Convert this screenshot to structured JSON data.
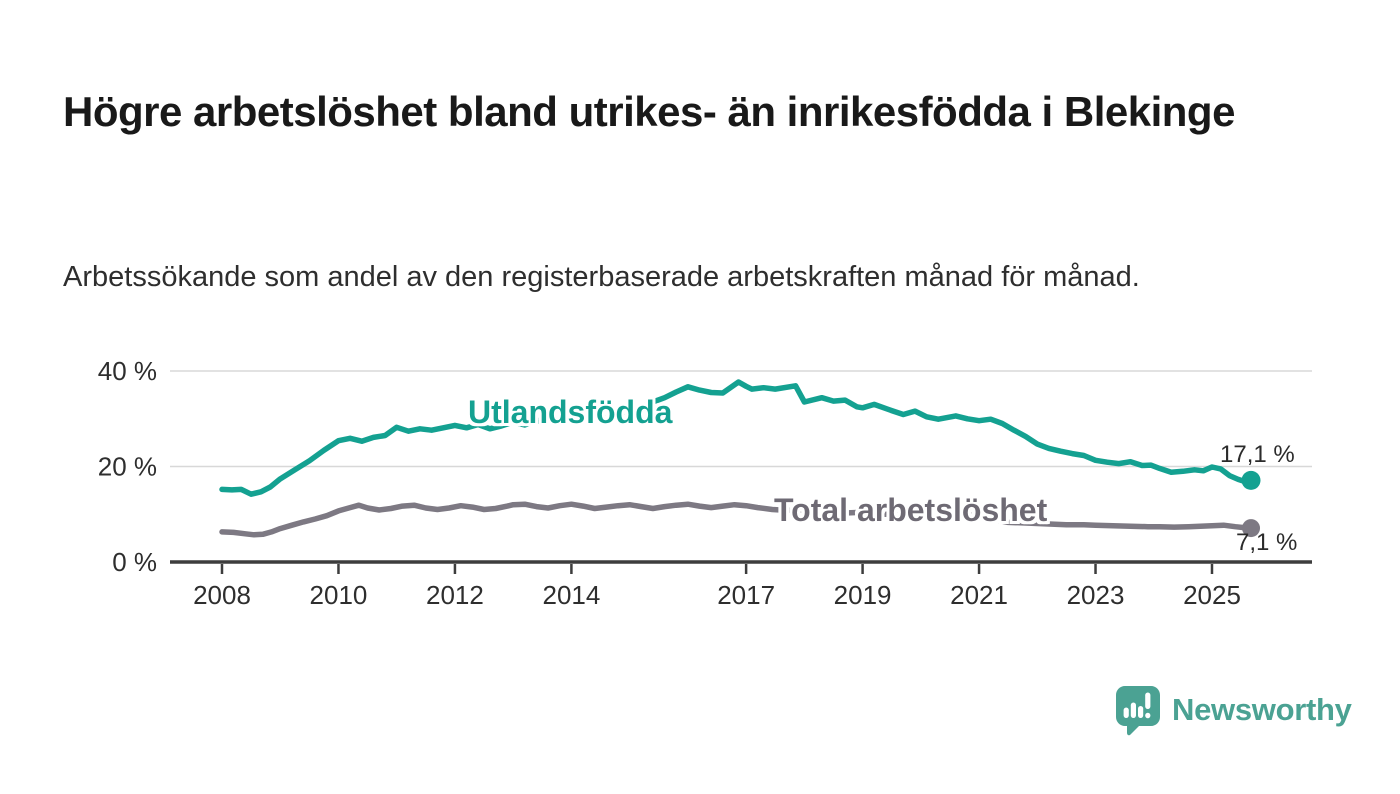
{
  "header": {
    "title": "Högre arbetslöshet bland utrikes- än inrikesfödda i Blekinge",
    "subtitle": "Arbetssökande som andel av den registerbaserade arbetskraften månad för månad."
  },
  "chart_data": {
    "type": "line",
    "title": "Högre arbetslöshet bland utrikes- än inrikesfödda i Blekinge",
    "subtitle": "Arbetssökande som andel av den registerbaserade arbetskraften månad för månad.",
    "unit": "%",
    "grid": "horizontal",
    "legend_position": "inline-labels",
    "ylim": [
      0,
      44
    ],
    "xlim": [
      2007.1,
      2026.7
    ],
    "y_ticks": [
      {
        "label": "0 %",
        "value": 0
      },
      {
        "label": "20 %",
        "value": 20
      },
      {
        "label": "40 %",
        "value": 40
      }
    ],
    "x_ticks": [
      {
        "label": "2008",
        "value": 2008
      },
      {
        "label": "2010",
        "value": 2010
      },
      {
        "label": "2012",
        "value": 2012
      },
      {
        "label": "2014",
        "value": 2014
      },
      {
        "label": "2017",
        "value": 2017
      },
      {
        "label": "2019",
        "value": 2019
      },
      {
        "label": "2021",
        "value": 2021
      },
      {
        "label": "2023",
        "value": 2023
      },
      {
        "label": "2025",
        "value": 2025
      }
    ],
    "series": [
      {
        "name": "Utlandsfödda",
        "color": "#14a191",
        "end_value": 17.1,
        "end_label": "17,1 %",
        "points": [
          [
            2008.0,
            15.2
          ],
          [
            2008.17,
            15.1
          ],
          [
            2008.33,
            15.2
          ],
          [
            2008.5,
            14.2
          ],
          [
            2008.67,
            14.7
          ],
          [
            2008.83,
            15.7
          ],
          [
            2009.0,
            17.4
          ],
          [
            2009.25,
            19.3
          ],
          [
            2009.5,
            21.2
          ],
          [
            2009.75,
            23.4
          ],
          [
            2010.0,
            25.4
          ],
          [
            2010.2,
            25.9
          ],
          [
            2010.4,
            25.3
          ],
          [
            2010.6,
            26.1
          ],
          [
            2010.8,
            26.5
          ],
          [
            2011.0,
            28.2
          ],
          [
            2011.2,
            27.4
          ],
          [
            2011.4,
            27.9
          ],
          [
            2011.6,
            27.6
          ],
          [
            2011.8,
            28.1
          ],
          [
            2012.0,
            28.6
          ],
          [
            2012.2,
            28.1
          ],
          [
            2012.4,
            28.8
          ],
          [
            2012.6,
            27.9
          ],
          [
            2012.8,
            28.5
          ],
          [
            2013.0,
            29.3
          ],
          [
            2013.2,
            28.7
          ],
          [
            2013.4,
            29.7
          ],
          [
            2013.6,
            29.3
          ],
          [
            2013.8,
            29.7
          ],
          [
            2014.0,
            30.2
          ],
          [
            2014.2,
            29.5
          ],
          [
            2014.4,
            30.5
          ],
          [
            2014.6,
            30.1
          ],
          [
            2014.8,
            31.1
          ],
          [
            2015.0,
            31.5
          ],
          [
            2015.2,
            32.3
          ],
          [
            2015.4,
            33.5
          ],
          [
            2015.6,
            34.4
          ],
          [
            2015.8,
            35.6
          ],
          [
            2016.0,
            36.7
          ],
          [
            2016.2,
            36.0
          ],
          [
            2016.4,
            35.5
          ],
          [
            2016.6,
            35.4
          ],
          [
            2016.87,
            37.7
          ],
          [
            2017.0,
            36.8
          ],
          [
            2017.1,
            36.2
          ],
          [
            2017.3,
            36.5
          ],
          [
            2017.5,
            36.2
          ],
          [
            2017.85,
            36.9
          ],
          [
            2018.0,
            33.5
          ],
          [
            2018.3,
            34.4
          ],
          [
            2018.5,
            33.7
          ],
          [
            2018.7,
            33.9
          ],
          [
            2018.9,
            32.5
          ],
          [
            2019.0,
            32.3
          ],
          [
            2019.2,
            33.0
          ],
          [
            2019.5,
            31.7
          ],
          [
            2019.7,
            30.9
          ],
          [
            2019.9,
            31.6
          ],
          [
            2020.1,
            30.4
          ],
          [
            2020.3,
            29.9
          ],
          [
            2020.6,
            30.6
          ],
          [
            2020.8,
            30.0
          ],
          [
            2021.0,
            29.6
          ],
          [
            2021.2,
            29.9
          ],
          [
            2021.4,
            29.0
          ],
          [
            2021.6,
            27.6
          ],
          [
            2021.8,
            26.3
          ],
          [
            2022.0,
            24.7
          ],
          [
            2022.2,
            23.8
          ],
          [
            2022.4,
            23.2
          ],
          [
            2022.6,
            22.7
          ],
          [
            2022.8,
            22.3
          ],
          [
            2023.0,
            21.3
          ],
          [
            2023.2,
            20.9
          ],
          [
            2023.4,
            20.6
          ],
          [
            2023.6,
            21.0
          ],
          [
            2023.8,
            20.2
          ],
          [
            2023.95,
            20.3
          ],
          [
            2024.1,
            19.6
          ],
          [
            2024.3,
            18.8
          ],
          [
            2024.5,
            19.0
          ],
          [
            2024.7,
            19.3
          ],
          [
            2024.85,
            19.1
          ],
          [
            2025.0,
            19.9
          ],
          [
            2025.15,
            19.5
          ],
          [
            2025.3,
            18.1
          ],
          [
            2025.45,
            17.3
          ],
          [
            2025.55,
            16.9
          ],
          [
            2025.67,
            17.1
          ]
        ]
      },
      {
        "name": "Total arbetslöshet",
        "color": "#7d7983",
        "end_value": 7.1,
        "end_label": "7,1 %",
        "points": [
          [
            2008.0,
            6.3
          ],
          [
            2008.2,
            6.2
          ],
          [
            2008.4,
            5.9
          ],
          [
            2008.55,
            5.7
          ],
          [
            2008.7,
            5.8
          ],
          [
            2008.85,
            6.3
          ],
          [
            2009.0,
            7.0
          ],
          [
            2009.2,
            7.7
          ],
          [
            2009.4,
            8.4
          ],
          [
            2009.6,
            9.0
          ],
          [
            2009.8,
            9.7
          ],
          [
            2010.0,
            10.7
          ],
          [
            2010.2,
            11.4
          ],
          [
            2010.35,
            11.9
          ],
          [
            2010.5,
            11.3
          ],
          [
            2010.7,
            10.9
          ],
          [
            2010.9,
            11.2
          ],
          [
            2011.1,
            11.7
          ],
          [
            2011.3,
            11.9
          ],
          [
            2011.5,
            11.3
          ],
          [
            2011.7,
            11.0
          ],
          [
            2011.9,
            11.3
          ],
          [
            2012.1,
            11.8
          ],
          [
            2012.3,
            11.5
          ],
          [
            2012.5,
            11.0
          ],
          [
            2012.7,
            11.2
          ],
          [
            2012.9,
            11.7
          ],
          [
            2013.0,
            12.0
          ],
          [
            2013.2,
            12.1
          ],
          [
            2013.4,
            11.6
          ],
          [
            2013.6,
            11.3
          ],
          [
            2013.8,
            11.8
          ],
          [
            2014.0,
            12.1
          ],
          [
            2014.2,
            11.7
          ],
          [
            2014.4,
            11.2
          ],
          [
            2014.6,
            11.5
          ],
          [
            2014.8,
            11.8
          ],
          [
            2015.0,
            12.0
          ],
          [
            2015.2,
            11.6
          ],
          [
            2015.4,
            11.2
          ],
          [
            2015.6,
            11.6
          ],
          [
            2015.8,
            11.9
          ],
          [
            2016.0,
            12.1
          ],
          [
            2016.2,
            11.7
          ],
          [
            2016.4,
            11.4
          ],
          [
            2016.6,
            11.7
          ],
          [
            2016.8,
            12.0
          ],
          [
            2017.0,
            11.8
          ],
          [
            2017.2,
            11.4
          ],
          [
            2017.45,
            11.0
          ],
          [
            2017.7,
            10.8
          ],
          [
            2018.0,
            11.0
          ],
          [
            2018.3,
            10.5
          ],
          [
            2018.6,
            10.2
          ],
          [
            2019.0,
            10.4
          ],
          [
            2019.4,
            10.0
          ],
          [
            2019.8,
            10.1
          ],
          [
            2020.2,
            10.5
          ],
          [
            2020.6,
            10.3
          ],
          [
            2021.0,
            9.5
          ],
          [
            2021.3,
            8.8
          ],
          [
            2021.5,
            8.3
          ],
          [
            2021.7,
            8.2
          ],
          [
            2021.9,
            8.1
          ],
          [
            2022.1,
            8.0
          ],
          [
            2022.3,
            7.9
          ],
          [
            2022.5,
            7.8
          ],
          [
            2022.8,
            7.8
          ],
          [
            2023.0,
            7.7
          ],
          [
            2023.3,
            7.6
          ],
          [
            2023.6,
            7.5
          ],
          [
            2023.9,
            7.4
          ],
          [
            2024.1,
            7.4
          ],
          [
            2024.35,
            7.3
          ],
          [
            2024.6,
            7.4
          ],
          [
            2024.8,
            7.5
          ],
          [
            2025.0,
            7.6
          ],
          [
            2025.2,
            7.7
          ],
          [
            2025.4,
            7.4
          ],
          [
            2025.55,
            7.2
          ],
          [
            2025.67,
            7.1
          ]
        ]
      }
    ],
    "colors": {
      "axis": "#3d3d3d",
      "gridline": "#d8d8d8",
      "tick_text": "#2e2e2e",
      "end_label_text": "#2b2b2b"
    }
  },
  "branding": {
    "name": "Newsworthy",
    "color": "#4ba293",
    "icon": "newsworthy-speech-bubble-bar-chart-icon"
  }
}
